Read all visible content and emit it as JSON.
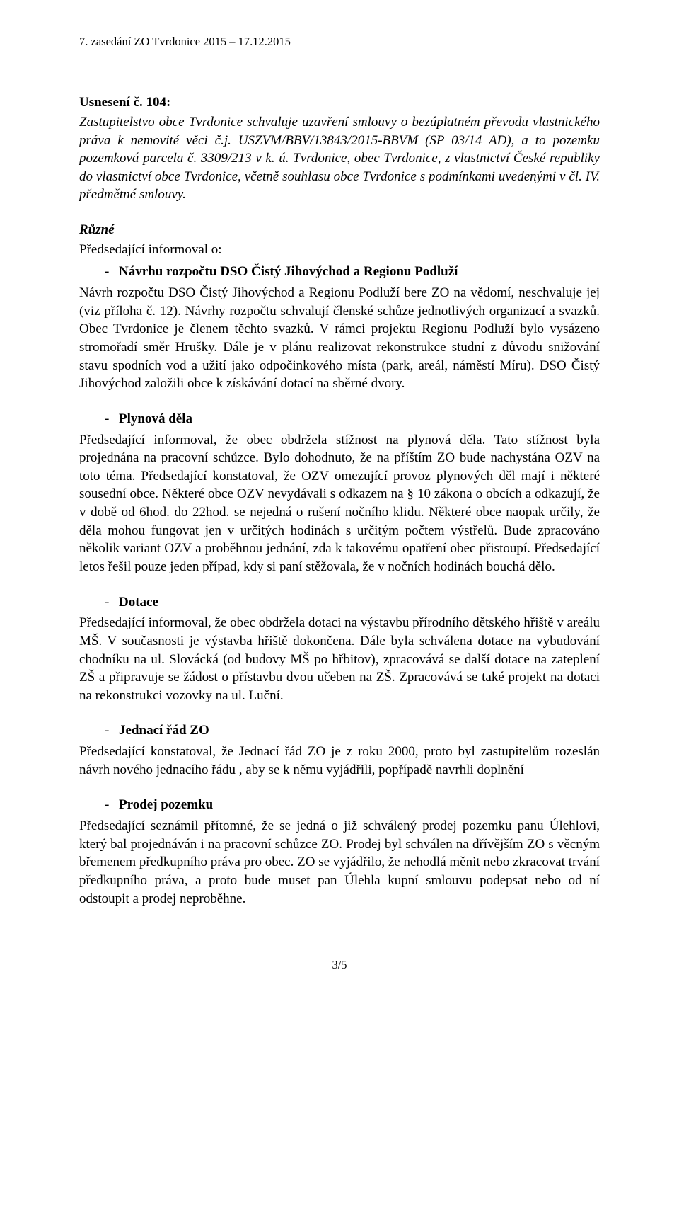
{
  "header": "7. zasedání  ZO Tvrdonice 2015 – 17.12.2015",
  "resolution": {
    "title": "Usnesení č. 104:",
    "body": "Zastupitelstvo obce Tvrdonice  schvaluje uzavření smlouvy o bezúplatném převodu vlastnického práva k nemovité věci č.j. USZVM/BBV/13843/2015-BBVM (SP 03/14 AD), a to pozemku pozemková parcela č. 3309/213 v k. ú. Tvrdonice, obec Tvrdonice, z vlastnictví České republiky do vlastnictví obce Tvrdonice, včetně souhlasu obce Tvrdonice s podmínkami uvedenými v čl. IV. předmětné smlouvy."
  },
  "ruzne": {
    "heading": "Různé",
    "introLine": "Předsedající informoval o:"
  },
  "sections": {
    "navrh": {
      "bullet": "Návrhu rozpočtu DSO Čistý Jihovýchod a Regionu Podluží",
      "body": "Návrh rozpočtu DSO Čistý Jihovýchod a Regionu Podluží bere ZO na vědomí, neschvaluje jej (viz příloha č. 12). Návrhy rozpočtu schvalují členské schůze jednotlivých organizací a svazků. Obec Tvrdonice je členem těchto svazků. V rámci projektu Regionu Podluží bylo vysázeno stromořadí směr Hrušky. Dále je v plánu realizovat rekonstrukce studní z důvodu snižování stavu spodních vod a užití jako odpočinkového místa (park, areál, náměstí Míru). DSO Čistý Jihovýchod založili obce k získávání dotací na sběrné dvory."
    },
    "plynova": {
      "bullet": "Plynová děla",
      "body": "Předsedající informoval, že obec obdržela stížnost na plynová děla. Tato stížnost byla projednána na pracovní schůzce. Bylo dohodnuto, že na příštím ZO bude nachystána OZV na toto téma. Předsedající konstatoval, že OZV omezující provoz plynových děl mají i některé sousední obce. Některé obce OZV nevydávali s odkazem na § 10 zákona o obcích a odkazují, že v době od 6hod. do 22hod. se nejedná o rušení nočního klidu. Některé obce naopak určily, že děla mohou fungovat jen v určitých hodinách s určitým počtem výstřelů. Bude zpracováno několik variant OZV a proběhnou jednání, zda k takovému opatření obec přistoupí. Předsedající letos řešil pouze jeden případ, kdy si paní stěžovala, že v nočních hodinách bouchá dělo."
    },
    "dotace": {
      "bullet": "Dotace",
      "body": "Předsedající informoval, že obec obdržela dotaci na výstavbu přírodního dětského hřiště v areálu MŠ. V současnosti je výstavba hřiště dokončena. Dále byla schválena dotace na vybudování chodníku na ul. Slovácká (od budovy MŠ po hřbitov), zpracovává se další dotace na zateplení ZŠ a připravuje se žádost o přístavbu dvou učeben na ZŠ. Zpracovává se také projekt na dotaci na rekonstrukci vozovky na ul. Luční."
    },
    "jednaci": {
      "bullet": "Jednací řád ZO",
      "body": "Předsedající konstatoval, že Jednací řád ZO je z roku 2000, proto byl zastupitelům rozeslán návrh nového jednacího řádu , aby se k němu vyjádřili, popřípadě navrhli doplnění"
    },
    "prodej": {
      "bullet": "Prodej pozemku",
      "body": "Předsedající seznámil přítomné, že se jedná o již schválený prodej pozemku panu Úlehlovi, který bal projednáván i na pracovní schůzce ZO. Prodej byl schválen na dřívějším ZO s věcným břemenem předkupního práva pro obec. ZO se vyjádřilo, že nehodlá měnit nebo zkracovat trvání předkupního práva, a proto bude muset pan Úlehla kupní smlouvu podepsat nebo od ní odstoupit a prodej neproběhne."
    }
  },
  "footer": "3/5"
}
